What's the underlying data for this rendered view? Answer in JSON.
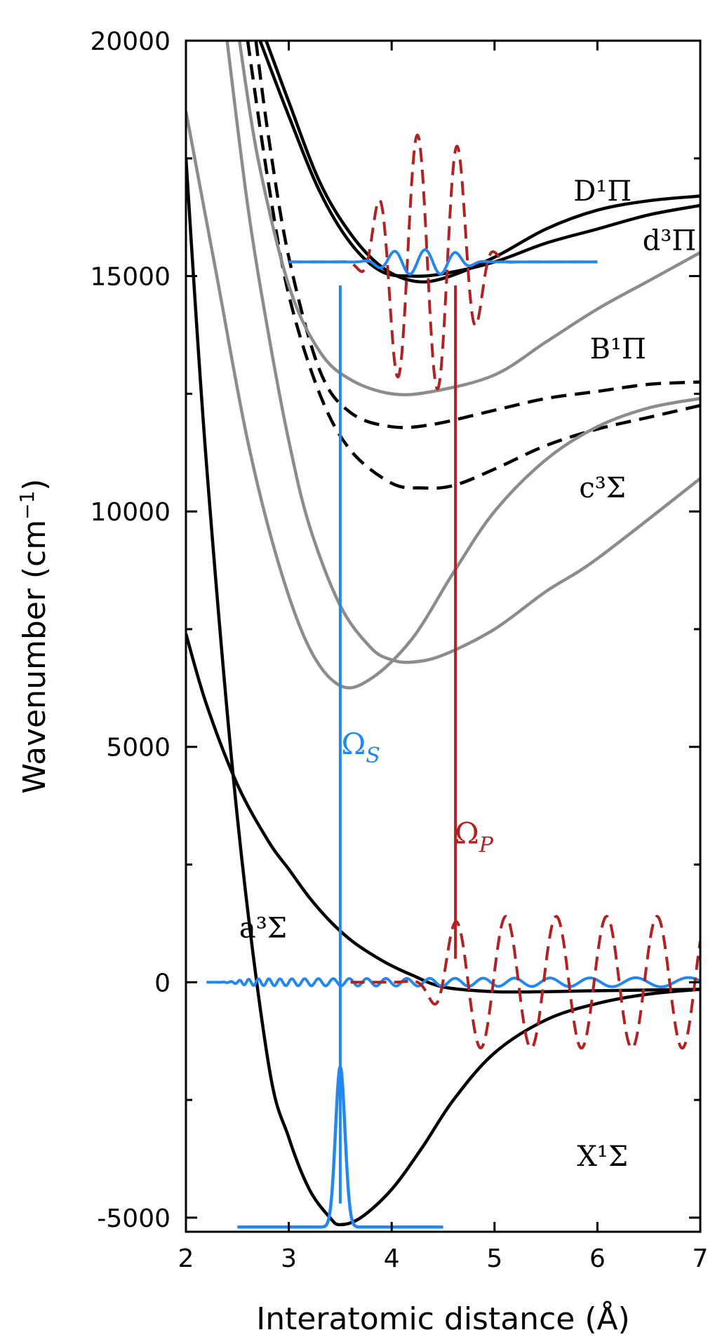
{
  "chart_data": {
    "type": "line",
    "xlabel": "Interatomic distance (Å)",
    "ylabel": "Wavenumber (cm",
    "ylabel_sup": "−1",
    "ylabel_end": ")",
    "xlim": [
      2,
      7
    ],
    "ylim": [
      -5300,
      20000
    ],
    "x_ticks": [
      2,
      3,
      4,
      5,
      6,
      7
    ],
    "x_tick_labels": [
      "2",
      "3",
      "4",
      "5",
      "6",
      "7"
    ],
    "y_ticks": [
      -5000,
      0,
      5000,
      10000,
      15000,
      20000
    ],
    "y_tick_labels": [
      "-5000",
      "0",
      "5000",
      "10000",
      "15000",
      "20000"
    ],
    "y_minor_ticks": [
      -2500,
      2500,
      7500,
      12500,
      17500
    ],
    "grid": false,
    "colors": {
      "black": "#000000",
      "gray": "#8c8c8c",
      "blue": "#2288ee",
      "red": "#b22222"
    },
    "series": [
      {
        "color": "black",
        "dash": false,
        "x": [
          2.0,
          2.2,
          2.5,
          2.8,
          3.0,
          3.2,
          3.4,
          3.5,
          3.7,
          4.0,
          4.3,
          4.6,
          5.0,
          5.5,
          6.0,
          6.5,
          7.0
        ],
        "y": [
          17500,
          11000,
          3500,
          -1700,
          -3300,
          -4400,
          -5000,
          -5150,
          -5000,
          -4400,
          -3500,
          -2500,
          -1500,
          -800,
          -450,
          -250,
          -150
        ]
      },
      {
        "color": "black",
        "dash": false,
        "x": [
          2.0,
          2.2,
          2.5,
          2.8,
          3.0,
          3.2,
          3.4,
          3.6,
          3.8,
          4.0,
          4.2,
          4.5,
          5.0,
          5.5,
          6.0,
          7.0
        ],
        "y": [
          7400,
          5900,
          4200,
          3000,
          2400,
          1800,
          1300,
          900,
          600,
          350,
          150,
          -100,
          -200,
          -200,
          -180,
          -150
        ]
      },
      {
        "color": "black",
        "dash": false,
        "x": [
          2.78,
          3.0,
          3.3,
          3.6,
          3.9,
          4.2,
          4.5,
          5.0,
          5.5,
          6.0,
          6.5,
          7.0
        ],
        "y": [
          20000,
          18700,
          17000,
          15900,
          15200,
          14900,
          14950,
          15400,
          16000,
          16400,
          16600,
          16700
        ]
      },
      {
        "color": "black",
        "dash": false,
        "x": [
          2.72,
          3.0,
          3.3,
          3.6,
          3.9,
          4.2,
          4.5,
          5.0,
          5.5,
          6.0,
          6.5,
          7.0
        ],
        "y": [
          20000,
          18400,
          16800,
          15700,
          15100,
          15000,
          15050,
          15300,
          15700,
          16000,
          16300,
          16500
        ]
      },
      {
        "color": "black",
        "dash": true,
        "x": [
          2.68,
          2.8,
          3.0,
          3.3,
          3.6,
          4.0,
          4.4,
          5.0,
          5.5,
          6.0,
          6.5,
          7.0
        ],
        "y": [
          20000,
          18000,
          15400,
          13000,
          12100,
          11800,
          11850,
          12150,
          12400,
          12550,
          12700,
          12750
        ]
      },
      {
        "color": "black",
        "dash": true,
        "x": [
          2.6,
          2.8,
          3.0,
          3.3,
          3.6,
          4.0,
          4.3,
          4.6,
          5.0,
          5.5,
          6.0,
          6.5,
          7.0
        ],
        "y": [
          20000,
          17000,
          14600,
          12500,
          11300,
          10600,
          10500,
          10550,
          10900,
          11400,
          11750,
          12000,
          12250
        ]
      },
      {
        "color": "gray",
        "dash": false,
        "x": [
          2.52,
          2.7,
          3.0,
          3.3,
          3.6,
          4.0,
          4.4,
          5.0,
          5.5,
          6.0,
          6.5,
          7.0
        ],
        "y": [
          20000,
          17500,
          14800,
          13400,
          12800,
          12500,
          12550,
          12900,
          13600,
          14300,
          14900,
          15500
        ]
      },
      {
        "color": "gray",
        "dash": false,
        "x": [
          2.4,
          2.6,
          2.8,
          3.0,
          3.2,
          3.5,
          3.8,
          4.0,
          4.2,
          4.5,
          5.0,
          5.5,
          6.0,
          7.0
        ],
        "y": [
          20000,
          16500,
          13800,
          11500,
          9700,
          8000,
          7100,
          6850,
          6800,
          6950,
          7500,
          8300,
          9000,
          10700
        ]
      },
      {
        "color": "gray",
        "dash": false,
        "x": [
          2.0,
          2.3,
          2.6,
          2.9,
          3.2,
          3.5,
          3.8,
          4.2,
          4.6,
          5.0,
          5.5,
          6.0,
          6.5,
          7.0
        ],
        "y": [
          18500,
          15000,
          11500,
          8900,
          7100,
          6300,
          6450,
          7300,
          8700,
          10000,
          11100,
          11800,
          12200,
          12400
        ]
      },
      {
        "color": "blue",
        "dash": false,
        "role": "transition",
        "x": [
          3.5,
          3.5
        ],
        "y": [
          -4700,
          14800
        ]
      },
      {
        "color": "red",
        "dash": false,
        "role": "transition",
        "x": [
          4.62,
          4.62
        ],
        "y": [
          500,
          14800
        ]
      }
    ],
    "annotations": [
      {
        "text": "D¹Π",
        "x": 6.05,
        "y": 16600,
        "color": "black"
      },
      {
        "text": "d³Π",
        "x": 6.7,
        "y": 15550,
        "color": "black"
      },
      {
        "text": "B¹Π",
        "x": 6.2,
        "y": 13250,
        "color": "black"
      },
      {
        "text": "c³Σ",
        "x": 6.05,
        "y": 10300,
        "color": "black"
      },
      {
        "text": "a³Σ",
        "x": 2.75,
        "y": 950,
        "color": "black"
      },
      {
        "text": "X¹Σ",
        "x": 6.05,
        "y": -3900,
        "color": "black"
      },
      {
        "text": "Ω",
        "sub": "S",
        "x": 3.7,
        "y": 4850,
        "color": "blue"
      },
      {
        "text": "Ω",
        "sub": "P",
        "x": 4.8,
        "y": 2950,
        "color": "red"
      }
    ]
  }
}
